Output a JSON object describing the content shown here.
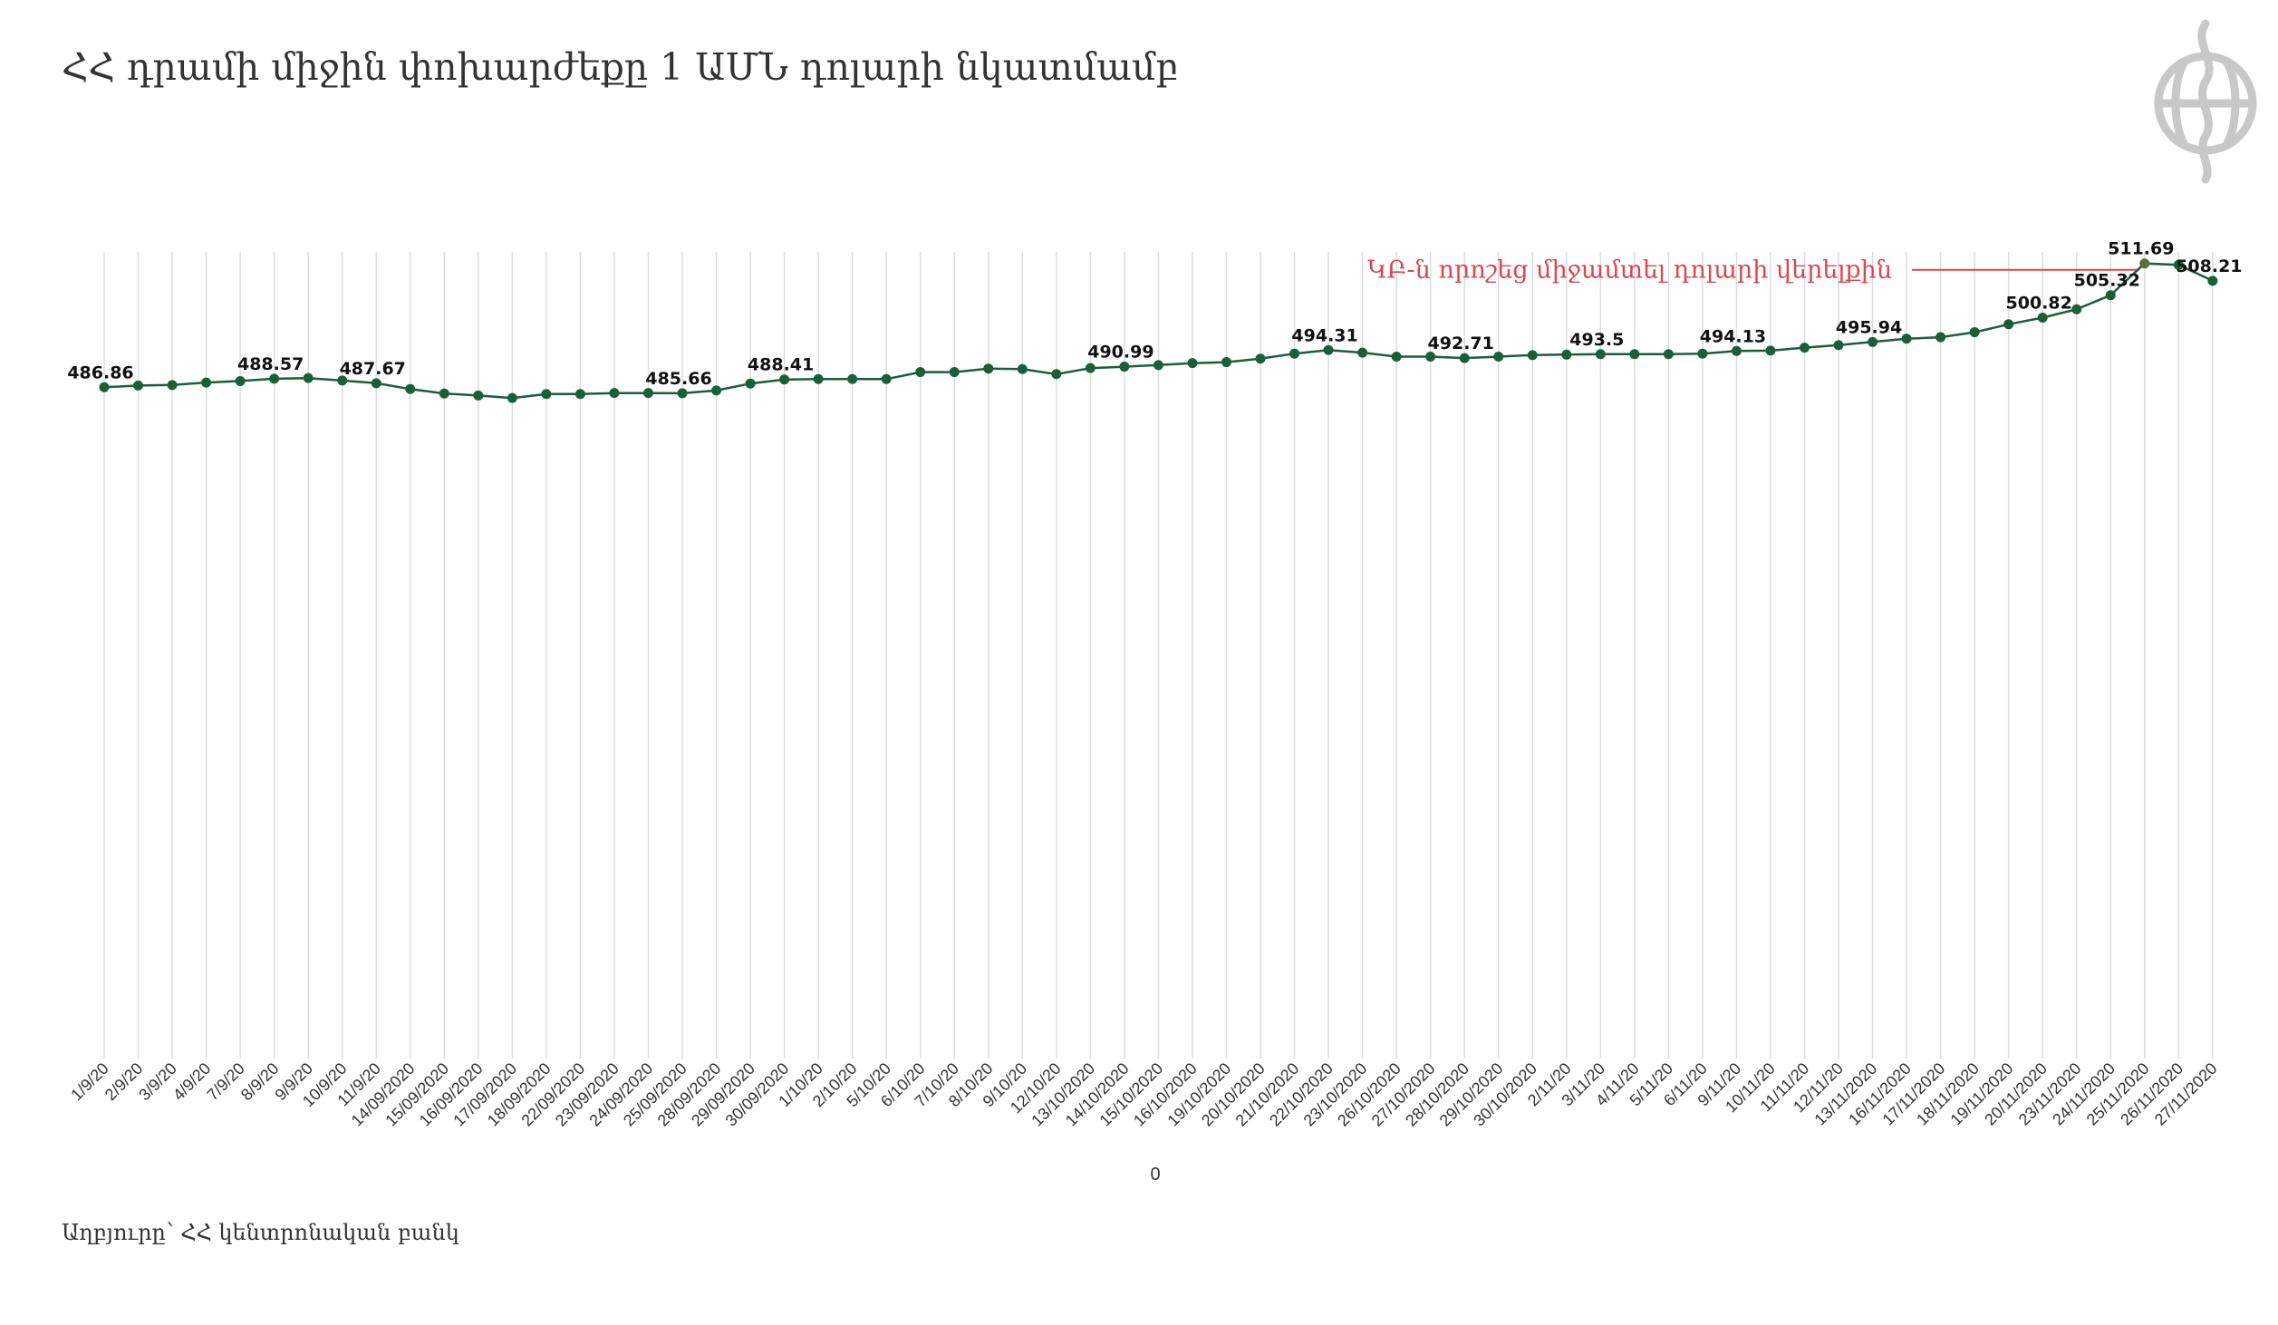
{
  "title": "ՀՀ դրամի միջին փոխարժեքը 1 ԱՄՆ դոլարի նկատմամբ",
  "source": "Աղբյուրը՝ ՀՀ կենտրոնական բանկ",
  "logo_icon": "media-logo-icon",
  "colors": {
    "line": "#1b5e3b",
    "point": "#1b5e3b",
    "grid": "#dddddd",
    "annotation": "#d9474f",
    "last_point": "#5a6e3a"
  },
  "chart_data": {
    "type": "line",
    "title": "ՀՀ դրամի միջին փոխարժեքը 1 ԱՄՆ դոլարի նկատմամբ",
    "xlabel": "0",
    "ylabel": "",
    "ylim": [
      0,
      520
    ],
    "grid": "vertical",
    "categories": [
      "1/9/20",
      "2/9/20",
      "3/9/20",
      "4/9/20",
      "7/9/20",
      "8/9/20",
      "9/9/20",
      "10/9/20",
      "11/9/20",
      "14/09/2020",
      "15/09/2020",
      "16/09/2020",
      "17/09/2020",
      "18/09/2020",
      "22/09/2020",
      "23/09/2020",
      "24/09/2020",
      "25/09/2020",
      "28/09/2020",
      "29/09/2020",
      "30/09/2020",
      "1/10/20",
      "2/10/20",
      "5/10/20",
      "6/10/20",
      "7/10/20",
      "8/10/20",
      "9/10/20",
      "12/10/20",
      "13/10/2020",
      "14/10/2020",
      "15/10/2020",
      "16/10/2020",
      "19/10/2020",
      "20/10/2020",
      "21/10/2020",
      "22/10/2020",
      "23/10/2020",
      "26/10/2020",
      "27/10/2020",
      "28/10/2020",
      "29/10/2020",
      "30/10/2020",
      "2/11/20",
      "3/11/20",
      "4/11/20",
      "5/11/20",
      "6/11/20",
      "9/11/20",
      "10/11/20",
      "11/11/20",
      "12/11/20",
      "13/11/2020",
      "16/11/2020",
      "17/11/2020",
      "18/11/2020",
      "19/11/2020",
      "20/11/2020",
      "23/11/2020",
      "24/11/2020",
      "25/11/2020",
      "26/11/2020",
      "27/11/2020"
    ],
    "series": [
      {
        "values": [
          486.86,
          487.2,
          487.3,
          487.8,
          488.1,
          488.57,
          488.7,
          488.2,
          487.67,
          486.5,
          485.6,
          485.2,
          484.7,
          485.5,
          485.5,
          485.7,
          485.7,
          485.66,
          486.2,
          487.6,
          488.41,
          488.5,
          488.5,
          488.5,
          489.9,
          489.9,
          490.6,
          490.5,
          489.5,
          490.7,
          490.99,
          491.3,
          491.7,
          491.9,
          492.6,
          493.6,
          494.31,
          493.8,
          493.0,
          493.0,
          492.71,
          493.0,
          493.3,
          493.4,
          493.5,
          493.5,
          493.5,
          493.6,
          494.13,
          494.2,
          494.8,
          495.3,
          495.94,
          496.6,
          496.9,
          497.9,
          499.5,
          500.82,
          502.5,
          505.32,
          511.69,
          511.4,
          508.21
        ],
        "labels": {
          "0": "486.86",
          "5": "488.57",
          "8": "487.67",
          "17": "485.66",
          "20": "488.41",
          "30": "490.99",
          "36": "494.31",
          "40": "492.71",
          "44": "493.5",
          "48": "494.13",
          "52": "495.94",
          "57": "500.82",
          "59": "505.32",
          "60": "511.69",
          "62": "508.21"
        }
      }
    ],
    "annotation": {
      "text": "ԿԲ-ն որոշեց միջամտել դոլարի վերելքին",
      "at_index": 60
    }
  }
}
